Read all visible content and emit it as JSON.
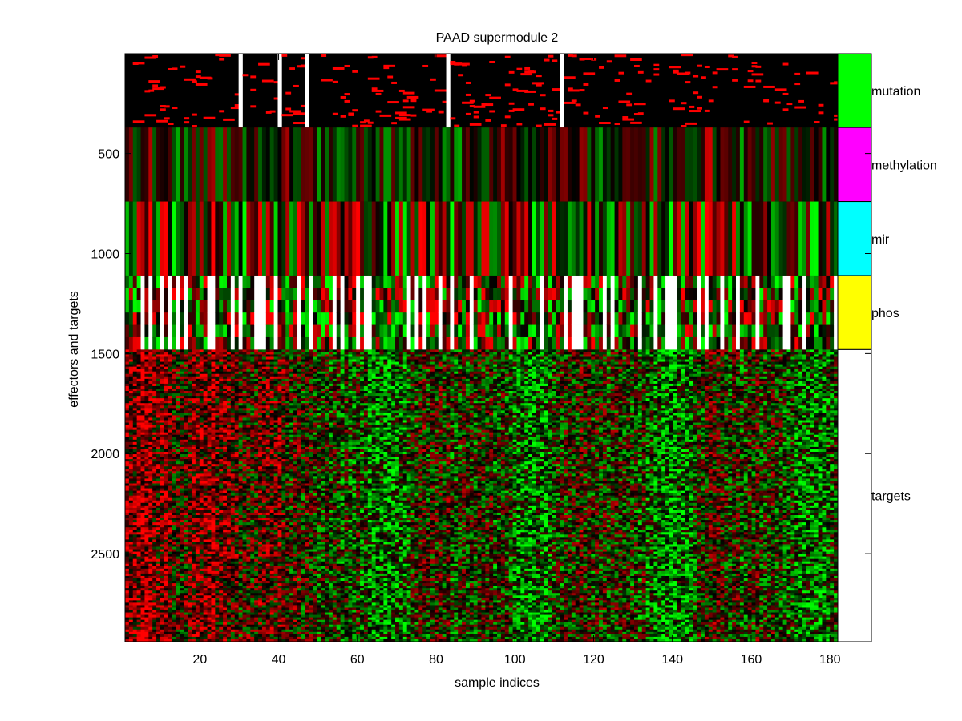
{
  "chart_data": {
    "type": "heatmap",
    "title": "PAAD supermodule 2",
    "xlabel": "sample indices",
    "ylabel": "effectors and targets",
    "xlim": [
      1,
      182
    ],
    "ylim": [
      1,
      2940
    ],
    "y_reversed": true,
    "x_ticks": [
      20,
      40,
      60,
      80,
      100,
      120,
      140,
      160,
      180
    ],
    "y_ticks": [
      500,
      1000,
      1500,
      2000,
      2500
    ],
    "colormap": {
      "low": "#00ff00",
      "mid": "#000000",
      "high": "#ff0000",
      "missing": "#ffffff"
    },
    "blocks": [
      {
        "name": "mutation",
        "row_start": 1,
        "row_end": 370,
        "color": "#00ff00",
        "kind": "binary"
      },
      {
        "name": "methylation",
        "row_start": 370,
        "row_end": 740,
        "color": "#ff00ff",
        "kind": "continuous"
      },
      {
        "name": "mir",
        "row_start": 740,
        "row_end": 1110,
        "color": "#00ffff",
        "kind": "continuous"
      },
      {
        "name": "phos",
        "row_start": 1110,
        "row_end": 1480,
        "color": "#ffff00",
        "kind": "continuous_missing"
      },
      {
        "name": "targets",
        "row_start": 1480,
        "row_end": 2940,
        "color": "#ffffff",
        "kind": "continuous_dense"
      }
    ],
    "missing_sample_columns": [
      30,
      40,
      47,
      83,
      112
    ],
    "grid": false,
    "legend": "right sidebar"
  }
}
